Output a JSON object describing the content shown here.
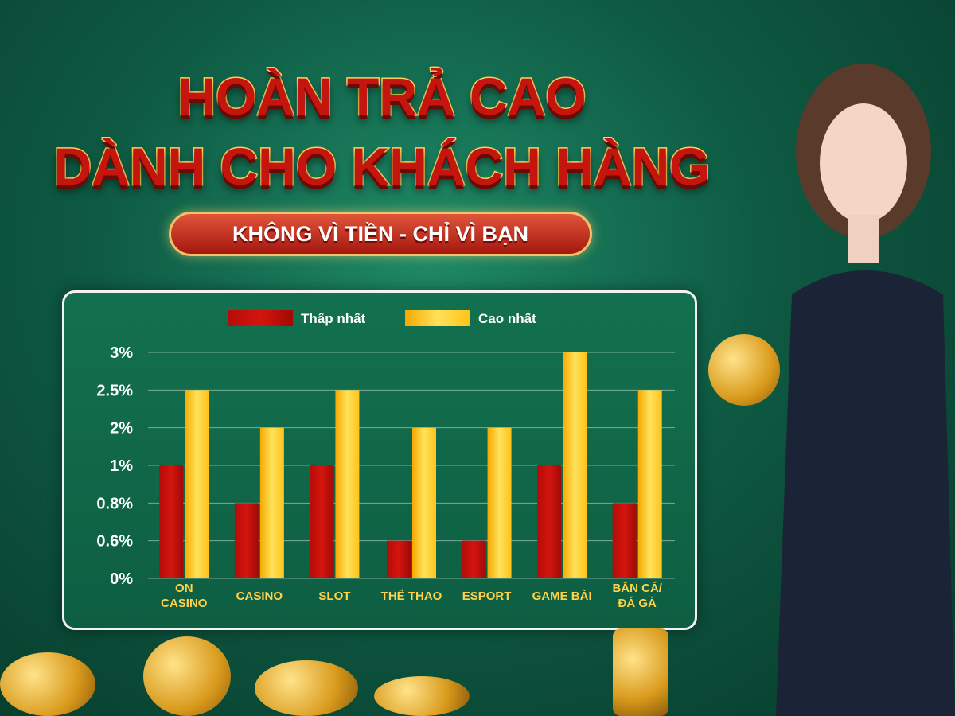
{
  "headline": {
    "line1": "HOÀN TRẢ CAO",
    "line2": "DÀNH CHO KHÁCH HÀNG",
    "ribbon": "KHÔNG VÌ TIỀN - CHỈ VÌ BẠN"
  },
  "colors": {
    "low": "#d4150f",
    "high": "#ffc21a",
    "background": "#0e5a43",
    "text": "#ffffff",
    "label": "#ffd24a"
  },
  "chart_data": {
    "type": "bar",
    "title": "",
    "xlabel": "",
    "ylabel": "",
    "y_ticks": [
      "0%",
      "0.6%",
      "0.8%",
      "1%",
      "2%",
      "2.5%",
      "3%"
    ],
    "y_scale": "ordinal (tick labels equally spaced)",
    "categories": [
      "ON CASINO",
      "CASINO",
      "SLOT",
      "THỂ THAO",
      "ESPORT",
      "GAME BÀI",
      "BẮN CÁ/ ĐÁ GÀ"
    ],
    "series": [
      {
        "name": "Thấp nhất",
        "values": [
          1,
          0.8,
          1,
          0.6,
          0.6,
          1,
          0.8
        ]
      },
      {
        "name": "Cao nhất",
        "values": [
          2.5,
          2,
          2.5,
          2,
          2,
          3,
          2.5
        ]
      }
    ],
    "legend": "top",
    "grid": true
  }
}
